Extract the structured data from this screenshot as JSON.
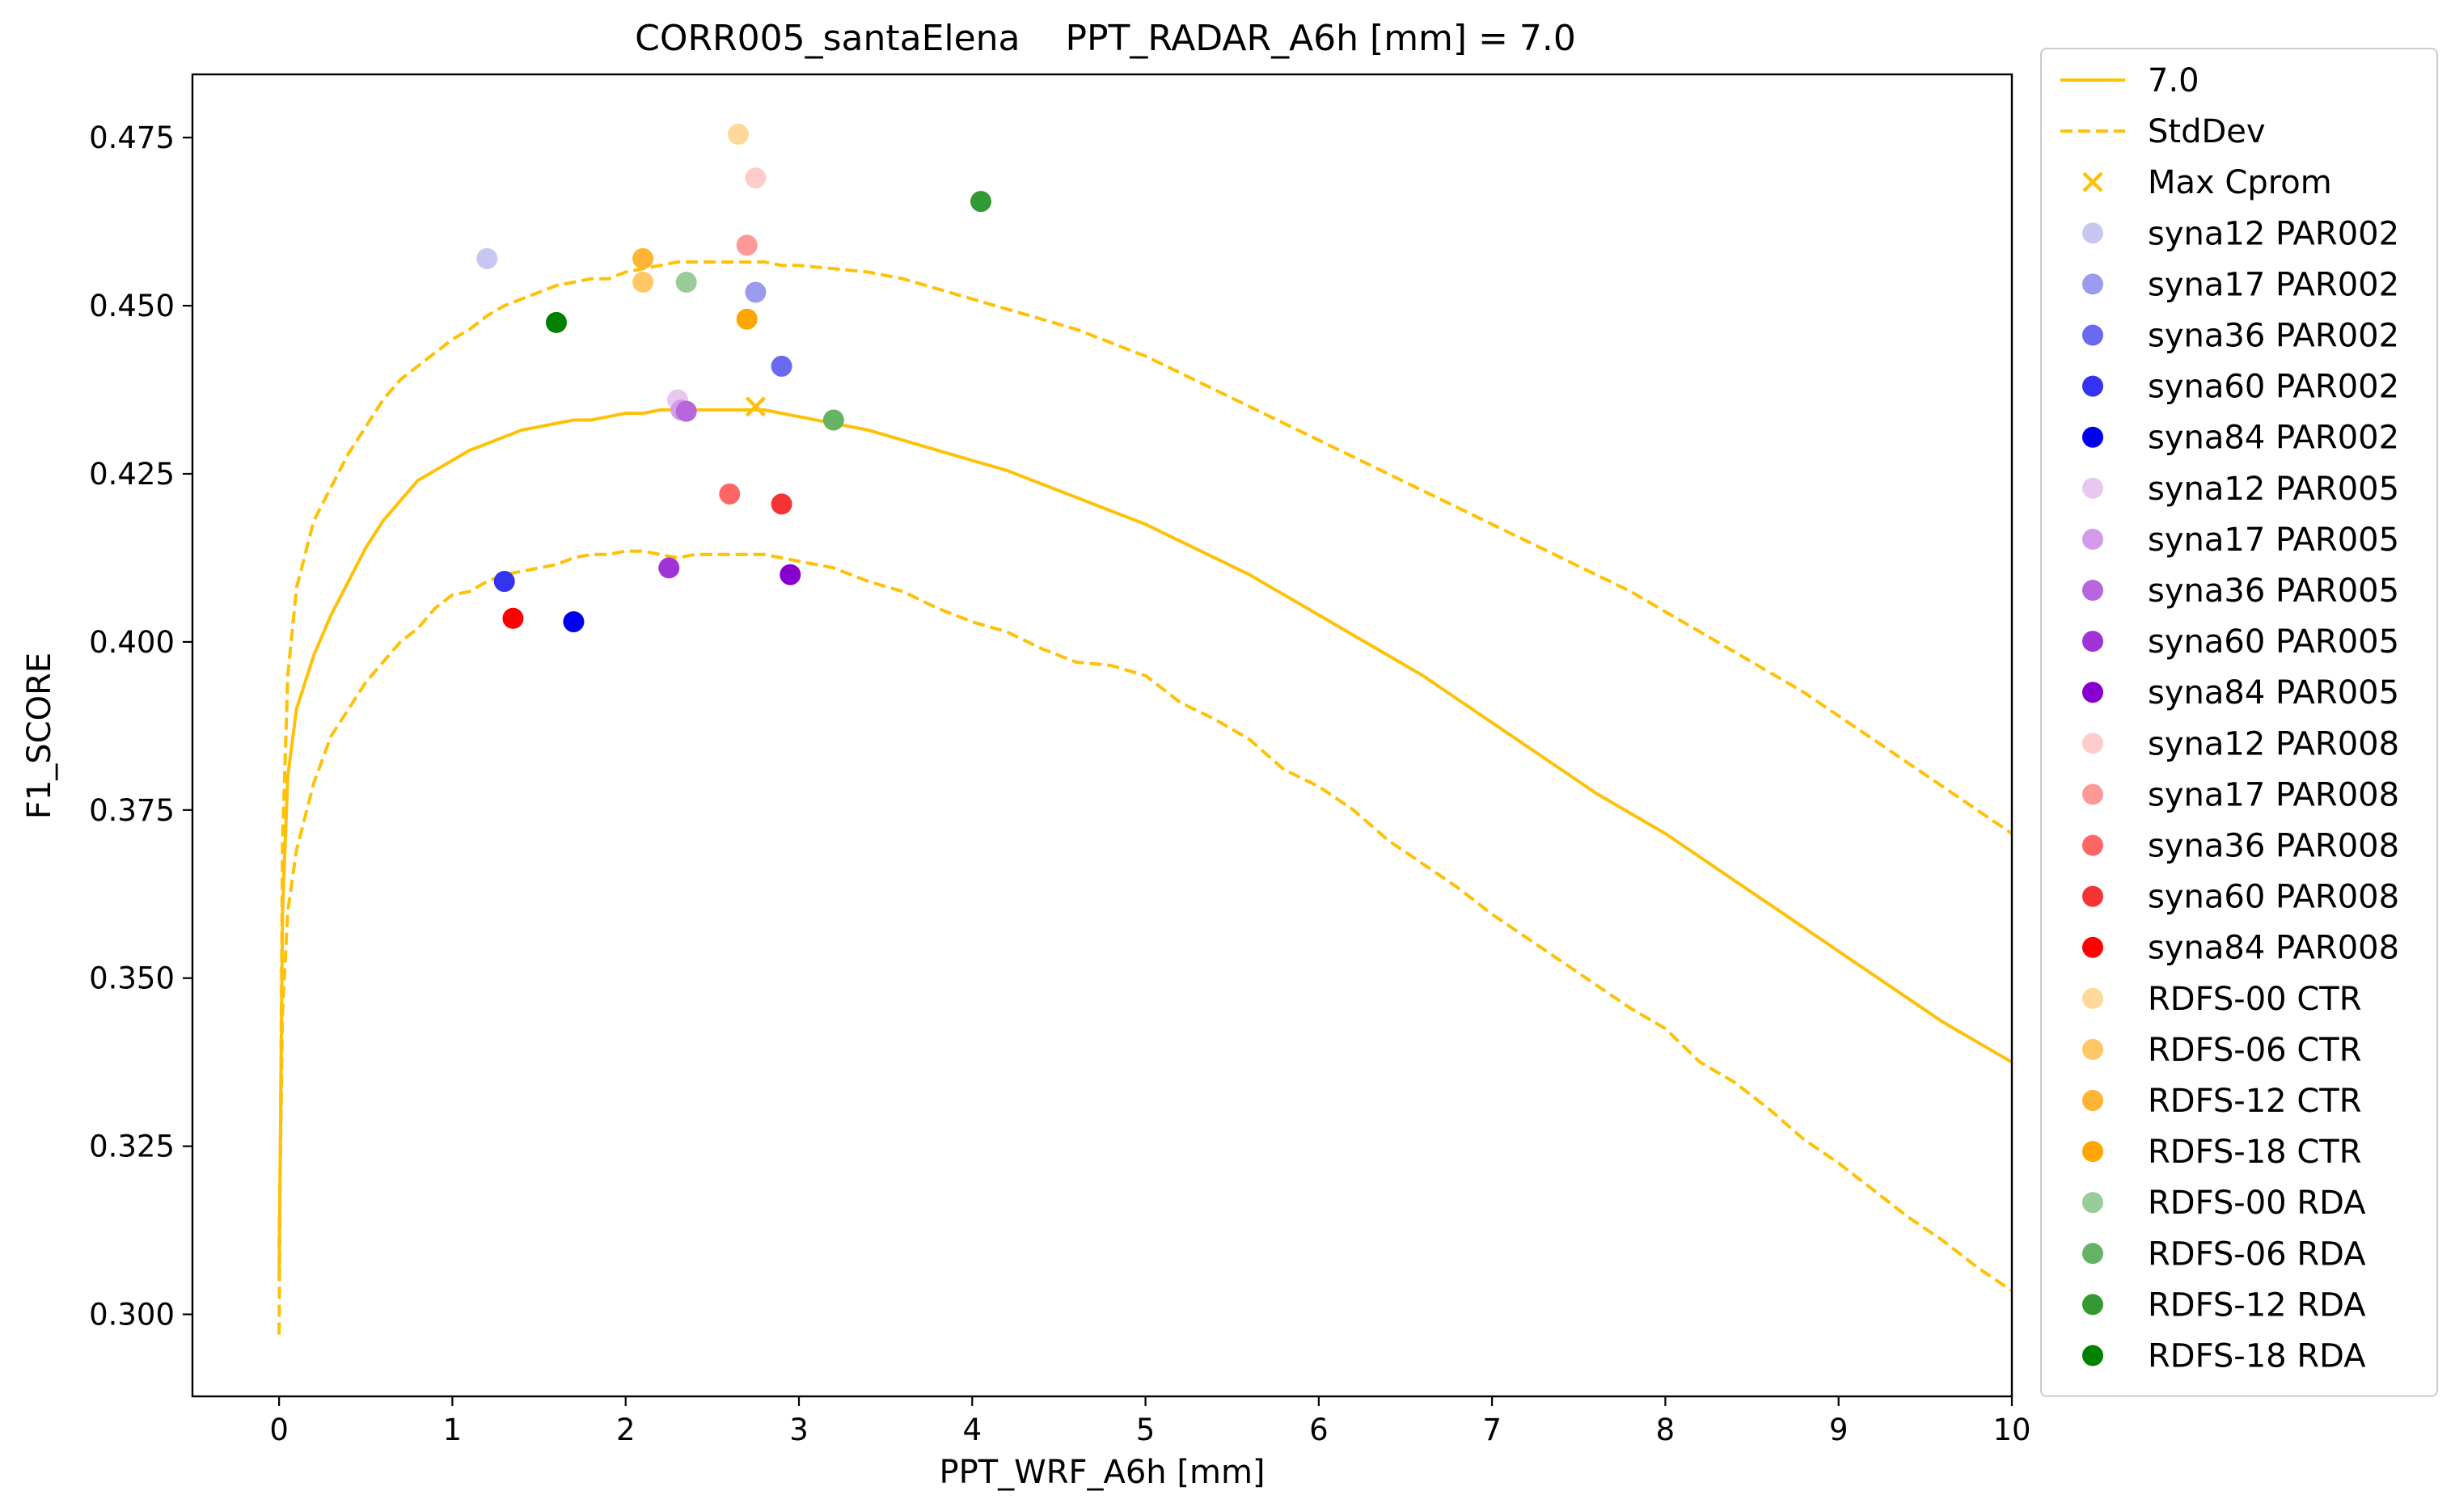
{
  "chart_data": {
    "type": "line",
    "title": "CORR005_santaElena    PPT_RADAR_A6h [mm] = 7.0",
    "xlabel": "PPT_WRF_A6h [mm]",
    "ylabel": "F1_SCORE",
    "xlim": [
      -0.5,
      10
    ],
    "ylim": [
      0.2878,
      0.4844
    ],
    "xticks": [
      0,
      1,
      2,
      3,
      4,
      5,
      6,
      7,
      8,
      9,
      10
    ],
    "xtick_labels": [
      "0",
      "1",
      "2",
      "3",
      "4",
      "5",
      "6",
      "7",
      "8",
      "9",
      "10"
    ],
    "yticks": [
      0.3,
      0.325,
      0.35,
      0.375,
      0.4,
      0.425,
      0.45,
      0.475
    ],
    "ytick_labels": [
      "0.300",
      "0.325",
      "0.350",
      "0.375",
      "0.400",
      "0.425",
      "0.450",
      "0.475"
    ],
    "grid": false,
    "legend_position": "outside right",
    "lines": [
      {
        "name": "7.0",
        "color": "#FFC107",
        "style": "solid",
        "x": [
          0,
          0.02,
          0.05,
          0.1,
          0.2,
          0.3,
          0.4,
          0.5,
          0.6,
          0.7,
          0.8,
          0.9,
          1.0,
          1.1,
          1.2,
          1.3,
          1.4,
          1.5,
          1.6,
          1.7,
          1.8,
          1.9,
          2.0,
          2.1,
          2.2,
          2.3,
          2.4,
          2.5,
          2.6,
          2.7,
          2.8,
          2.9,
          3.0,
          3.2,
          3.4,
          3.6,
          3.8,
          4.0,
          4.2,
          4.4,
          4.6,
          4.8,
          5.0,
          5.2,
          5.4,
          5.6,
          5.8,
          6.0,
          6.2,
          6.4,
          6.6,
          6.8,
          7.0,
          7.2,
          7.4,
          7.6,
          7.8,
          8.0,
          8.2,
          8.4,
          8.6,
          8.8,
          9.0,
          9.2,
          9.4,
          9.6,
          9.8,
          10.0
        ],
        "y": [
          0.305,
          0.36,
          0.38,
          0.39,
          0.398,
          0.404,
          0.409,
          0.414,
          0.418,
          0.421,
          0.424,
          0.4255,
          0.427,
          0.4285,
          0.4295,
          0.4305,
          0.4315,
          0.432,
          0.4325,
          0.433,
          0.433,
          0.4335,
          0.434,
          0.434,
          0.4345,
          0.4345,
          0.4345,
          0.4345,
          0.4345,
          0.4345,
          0.4345,
          0.434,
          0.4335,
          0.4325,
          0.4315,
          0.43,
          0.4285,
          0.427,
          0.4255,
          0.4235,
          0.4215,
          0.4195,
          0.4175,
          0.415,
          0.4125,
          0.41,
          0.407,
          0.404,
          0.401,
          0.398,
          0.395,
          0.3915,
          0.388,
          0.3845,
          0.381,
          0.3775,
          0.3745,
          0.3715,
          0.368,
          0.3645,
          0.361,
          0.3575,
          0.354,
          0.3505,
          0.347,
          0.3435,
          0.3405,
          0.3375
        ]
      },
      {
        "name": "StdDev",
        "color": "#FFC107",
        "style": "dashed",
        "x": [
          0,
          0.02,
          0.05,
          0.1,
          0.2,
          0.3,
          0.4,
          0.5,
          0.6,
          0.7,
          0.8,
          0.9,
          1.0,
          1.1,
          1.2,
          1.3,
          1.4,
          1.5,
          1.6,
          1.7,
          1.8,
          1.9,
          2.0,
          2.1,
          2.2,
          2.3,
          2.4,
          2.5,
          2.6,
          2.7,
          2.8,
          2.9,
          3.0,
          3.2,
          3.4,
          3.6,
          3.8,
          4.0,
          4.2,
          4.4,
          4.6,
          4.8,
          5.0,
          5.2,
          5.4,
          5.6,
          5.8,
          6.0,
          6.2,
          6.4,
          6.6,
          6.8,
          7.0,
          7.2,
          7.4,
          7.6,
          7.8,
          8.0,
          8.2,
          8.4,
          8.6,
          8.8,
          9.0,
          9.2,
          9.4,
          9.6,
          9.8,
          10.0
        ],
        "y": [
          0.297,
          0.37,
          0.395,
          0.408,
          0.418,
          0.423,
          0.428,
          0.432,
          0.436,
          0.439,
          0.441,
          0.443,
          0.445,
          0.4465,
          0.4485,
          0.45,
          0.451,
          0.452,
          0.453,
          0.4535,
          0.454,
          0.454,
          0.455,
          0.4555,
          0.456,
          0.4565,
          0.4565,
          0.4565,
          0.4565,
          0.4565,
          0.4565,
          0.456,
          0.456,
          0.4555,
          0.455,
          0.454,
          0.4525,
          0.451,
          0.4495,
          0.448,
          0.4465,
          0.4445,
          0.4425,
          0.44,
          0.4375,
          0.435,
          0.4325,
          0.43,
          0.4275,
          0.425,
          0.4225,
          0.42,
          0.4175,
          0.415,
          0.4125,
          0.41,
          0.4075,
          0.4045,
          0.4015,
          0.3985,
          0.3955,
          0.3925,
          0.389,
          0.3855,
          0.382,
          0.3785,
          0.375,
          0.3715
        ]
      },
      {
        "name": "",
        "color": "#FFC107",
        "style": "dashed",
        "x": [
          0,
          0.02,
          0.05,
          0.1,
          0.2,
          0.3,
          0.4,
          0.5,
          0.6,
          0.7,
          0.8,
          0.9,
          1.0,
          1.1,
          1.2,
          1.3,
          1.4,
          1.5,
          1.6,
          1.7,
          1.8,
          1.9,
          2.0,
          2.1,
          2.2,
          2.3,
          2.4,
          2.5,
          2.6,
          2.7,
          2.8,
          2.9,
          3.0,
          3.2,
          3.4,
          3.6,
          3.8,
          4.0,
          4.2,
          4.4,
          4.6,
          4.8,
          5.0,
          5.2,
          5.4,
          5.6,
          5.8,
          6.0,
          6.2,
          6.4,
          6.6,
          6.8,
          7.0,
          7.2,
          7.4,
          7.6,
          7.8,
          8.0,
          8.2,
          8.4,
          8.6,
          8.8,
          9.0,
          9.2,
          9.4,
          9.6,
          9.8,
          10.0
        ],
        "y": [
          0.31,
          0.345,
          0.36,
          0.369,
          0.379,
          0.386,
          0.39,
          0.394,
          0.397,
          0.4,
          0.402,
          0.405,
          0.407,
          0.4075,
          0.409,
          0.41,
          0.4105,
          0.411,
          0.4115,
          0.4125,
          0.413,
          0.413,
          0.4135,
          0.4135,
          0.413,
          0.4125,
          0.413,
          0.413,
          0.413,
          0.413,
          0.413,
          0.4125,
          0.412,
          0.411,
          0.409,
          0.4075,
          0.405,
          0.403,
          0.4015,
          0.399,
          0.397,
          0.3965,
          0.395,
          0.391,
          0.3885,
          0.3855,
          0.381,
          0.3785,
          0.375,
          0.3705,
          0.367,
          0.3635,
          0.3595,
          0.356,
          0.3525,
          0.349,
          0.3455,
          0.3425,
          0.3375,
          0.3345,
          0.3305,
          0.326,
          0.3225,
          0.3185,
          0.3145,
          0.311,
          0.307,
          0.3035
        ]
      }
    ],
    "markers": [
      {
        "name": "Max Cprom",
        "shape": "x",
        "color": "#FFC107",
        "x": 2.75,
        "y": 0.435
      }
    ],
    "points": [
      {
        "name": "syna12 PAR002",
        "color": "#C7C7F2",
        "x": 1.2,
        "y": 0.457
      },
      {
        "name": "syna17 PAR002",
        "color": "#9A9AEE",
        "x": 2.75,
        "y": 0.452
      },
      {
        "name": "syna36 PAR002",
        "color": "#6A6AF0",
        "x": 2.9,
        "y": 0.441
      },
      {
        "name": "syna60 PAR002",
        "color": "#3333F0",
        "x": 1.3,
        "y": 0.409
      },
      {
        "name": "syna84 PAR002",
        "color": "#0000EE",
        "x": 1.7,
        "y": 0.403
      },
      {
        "name": "syna12 PAR005",
        "color": "#E6C8F0",
        "x": 2.3,
        "y": 0.436
      },
      {
        "name": "syna17 PAR005",
        "color": "#D29AE8",
        "x": 2.32,
        "y": 0.4345
      },
      {
        "name": "syna36 PAR005",
        "color": "#B866DE",
        "x": 2.35,
        "y": 0.4343
      },
      {
        "name": "syna60 PAR005",
        "color": "#A033D6",
        "x": 2.25,
        "y": 0.411
      },
      {
        "name": "syna84 PAR005",
        "color": "#8800D0",
        "x": 2.95,
        "y": 0.41
      },
      {
        "name": "syna12 PAR008",
        "color": "#FFCCCC",
        "x": 2.75,
        "y": 0.469
      },
      {
        "name": "syna17 PAR008",
        "color": "#FF9999",
        "x": 2.7,
        "y": 0.459
      },
      {
        "name": "syna36 PAR008",
        "color": "#FF6666",
        "x": 2.6,
        "y": 0.422
      },
      {
        "name": "syna60 PAR008",
        "color": "#F53333",
        "x": 2.9,
        "y": 0.4205
      },
      {
        "name": "syna84 PAR008",
        "color": "#FF0000",
        "x": 1.35,
        "y": 0.4035
      },
      {
        "name": "RDFS-00 CTR",
        "color": "#FFD99A",
        "x": 2.65,
        "y": 0.4755
      },
      {
        "name": "RDFS-06 CTR",
        "color": "#FFC766",
        "x": 2.1,
        "y": 0.4535
      },
      {
        "name": "RDFS-12 CTR",
        "color": "#FFB533",
        "x": 2.1,
        "y": 0.457
      },
      {
        "name": "RDFS-18 CTR",
        "color": "#FFA500",
        "x": 2.7,
        "y": 0.448
      },
      {
        "name": "RDFS-00 RDA",
        "color": "#99CC99",
        "x": 2.35,
        "y": 0.4535
      },
      {
        "name": "RDFS-06 RDA",
        "color": "#66B366",
        "x": 3.2,
        "y": 0.433
      },
      {
        "name": "RDFS-12 RDA",
        "color": "#339933",
        "x": 4.05,
        "y": 0.4655
      },
      {
        "name": "RDFS-18 RDA",
        "color": "#008000",
        "x": 1.6,
        "y": 0.4475
      }
    ]
  }
}
